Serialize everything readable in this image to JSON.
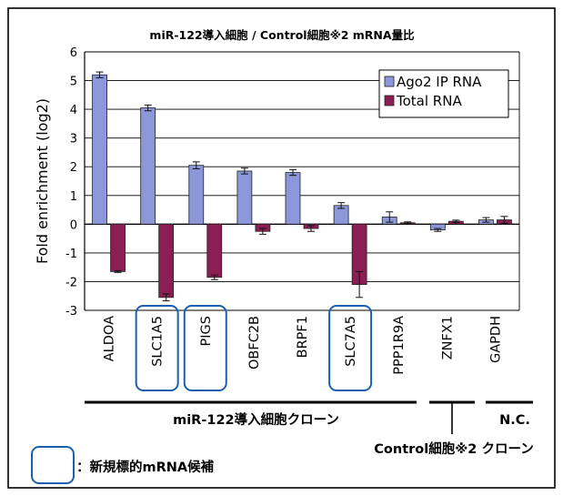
{
  "chart_data": {
    "type": "bar",
    "title": "miR-122導入細胞 / Control細胞※2 mRNA量比",
    "ylabel": "Fold enrichment (log2)",
    "ylim": [
      -3,
      6
    ],
    "yticks": [
      "6",
      "5",
      "4",
      "3",
      "2",
      "1",
      "0",
      "-1",
      "-2",
      "-3"
    ],
    "grid": true,
    "legend_position": "top-right",
    "categories": [
      "ALDOA",
      "SLC1A5",
      "PIGS",
      "OBFC2B",
      "BRPF1",
      "SLC7A5",
      "PPP1R9A",
      "ZNFX1",
      "GAPDH"
    ],
    "series": [
      {
        "name": "Ago2 IP RNA",
        "color": "#8B97D9",
        "values": [
          5.2,
          4.05,
          2.05,
          1.85,
          1.8,
          0.65,
          0.25,
          -0.2,
          0.15
        ],
        "errors": [
          0.1,
          0.1,
          0.12,
          0.1,
          0.1,
          0.1,
          0.18,
          0.05,
          0.08
        ]
      },
      {
        "name": "Total RNA",
        "color": "#8B1E53",
        "values": [
          -1.65,
          -2.55,
          -1.85,
          -0.25,
          -0.15,
          -2.1,
          0.05,
          0.1,
          0.15
        ],
        "errors": [
          0.03,
          0.12,
          0.08,
          0.1,
          0.1,
          0.45,
          0.03,
          0.04,
          0.12
        ]
      }
    ],
    "highlighted_categories": [
      "SLC1A5",
      "PIGS",
      "SLC7A5"
    ],
    "groups": [
      {
        "label": "miR-122導入細胞クローン",
        "from": 0,
        "to": 6
      },
      {
        "label": "",
        "from": 7,
        "to": 7
      },
      {
        "label": "N.C.",
        "from": 8,
        "to": 8
      }
    ],
    "control_label": "Control細胞※2 クローン",
    "highlight_legend": "：新規標的mRNA候補"
  }
}
